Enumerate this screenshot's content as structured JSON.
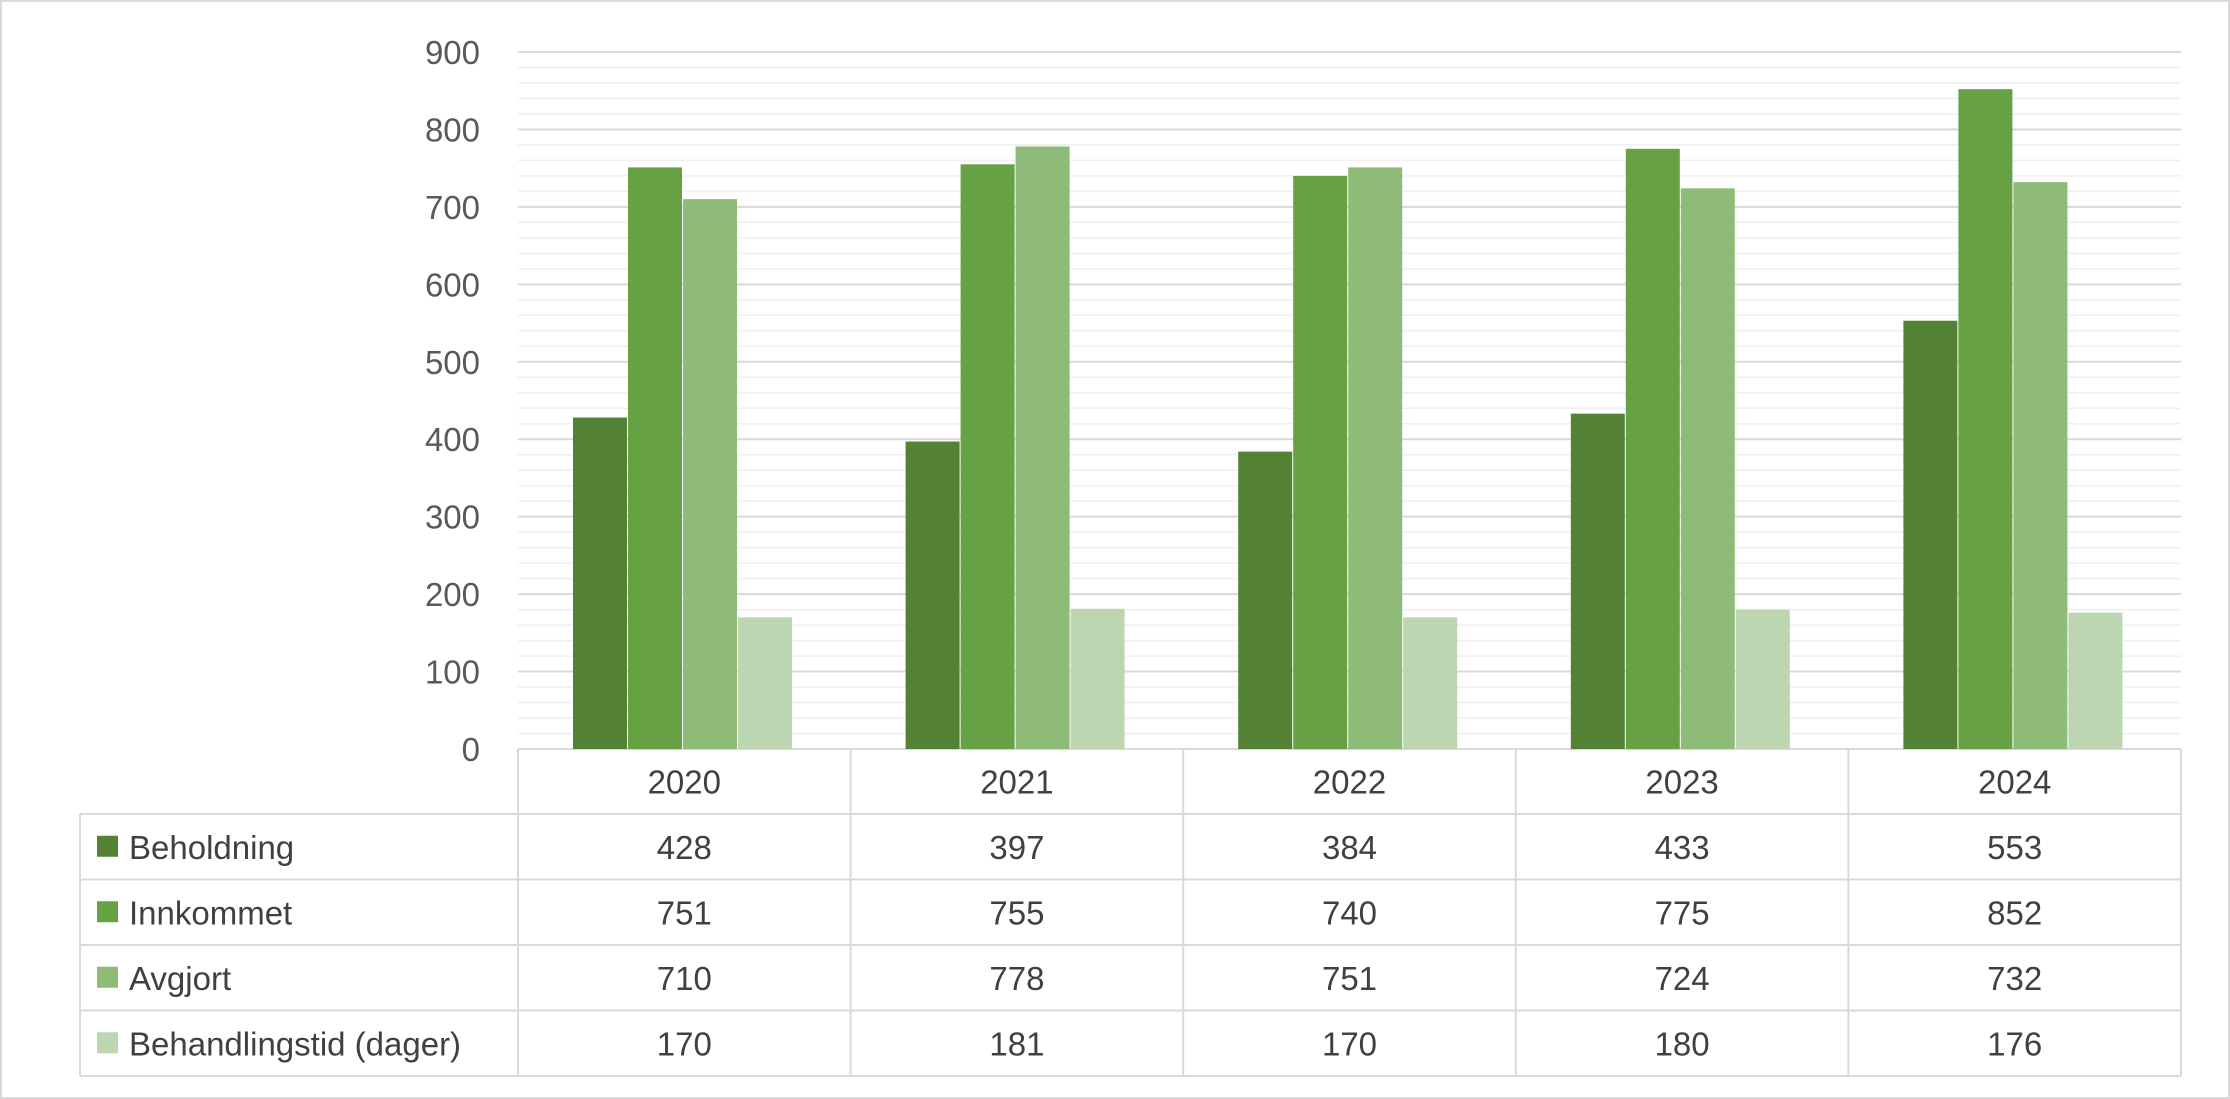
{
  "chart_data": {
    "type": "bar",
    "title": "",
    "xlabel": "",
    "ylabel": "",
    "ylim": [
      0,
      900
    ],
    "yticks": [
      0,
      100,
      200,
      300,
      400,
      500,
      600,
      700,
      800,
      900
    ],
    "grid": true,
    "legend": "data-table",
    "categories": [
      "2020",
      "2021",
      "2022",
      "2023",
      "2024"
    ],
    "series": [
      {
        "name": "Beholdning",
        "values": [
          428,
          397,
          384,
          433,
          553
        ],
        "color": "#548235"
      },
      {
        "name": "Innkommet",
        "values": [
          751,
          755,
          740,
          775,
          852
        ],
        "color": "#66a144"
      },
      {
        "name": "Avgjort",
        "values": [
          710,
          778,
          751,
          724,
          732
        ],
        "color": "#8fbb79"
      },
      {
        "name": "Behandlingstid (dager)",
        "values": [
          170,
          181,
          170,
          180,
          176
        ],
        "color": "#bdd6b2"
      }
    ]
  },
  "colors": {
    "gridline_major": "#d9d9d9",
    "gridline_minor": "#efefef",
    "table_border": "#d9d9d9",
    "text": "#404040"
  }
}
